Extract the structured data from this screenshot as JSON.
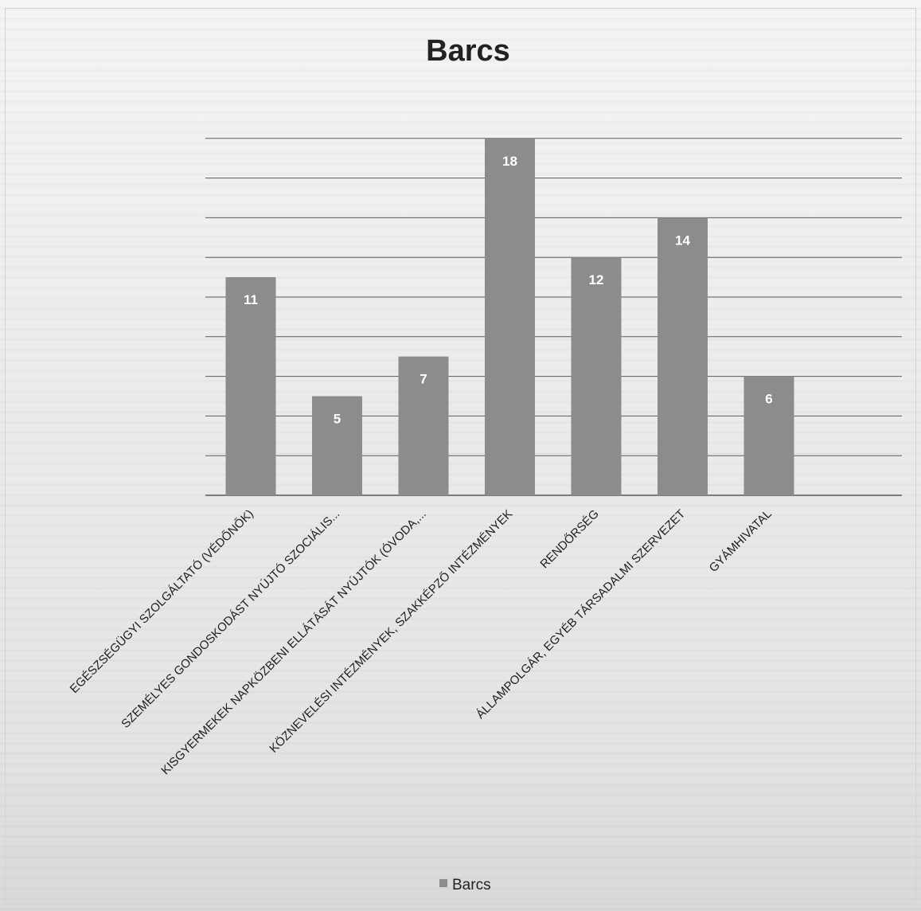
{
  "chart_data": {
    "type": "bar",
    "title": "Barcs",
    "categories": [
      "EGÉSZSÉGÜGYI SZOLGÁLTATÓ (VÉDŐNŐK)",
      "SZEMÉLYES GONDOSKODÁST NYÚJTÓ SZOCIÁLIS...",
      "KISGYERMEKEK NAPKÖZBENI ELLÁTÁSÁT NYÚJTÓK (ÓVODA,...",
      "KÖZNEVELÉSI INTÉZMÉNYEK, SZAKKÉPZŐ INTÉZMÉNYEK",
      "RENDŐRSÉG",
      "ÁLLAMPOLGÁR, EGYÉB TÁRSADALMI SZERVEZET",
      "GYÁMHIVATAL"
    ],
    "series": [
      {
        "name": "Barcs",
        "values": [
          11,
          5,
          7,
          18,
          12,
          14,
          6
        ]
      }
    ],
    "ylim": [
      0,
      18
    ],
    "grid": true,
    "data_labels": true,
    "legend": "bottom",
    "colors": {
      "bar": "#8c8c8c",
      "label": "#ffffff",
      "grid": "#5a5a5a",
      "title": "#222222",
      "axis_text": "#1e1e1e"
    }
  }
}
